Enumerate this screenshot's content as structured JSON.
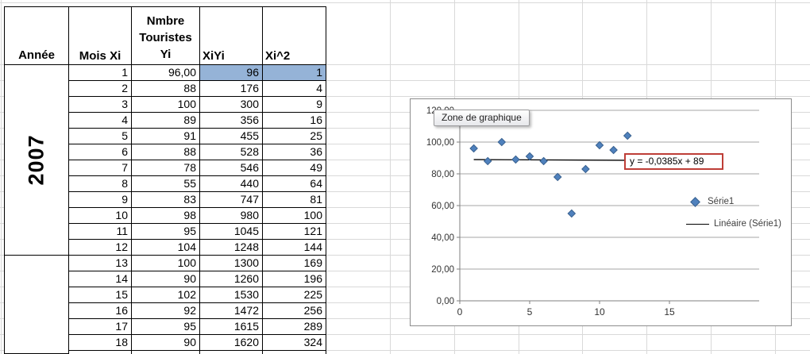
{
  "table": {
    "year_header": "Année",
    "year_value": "2007",
    "col_mois": "Mois Xi",
    "col_touristes_lines": [
      "Nmbre",
      "Touristes",
      "Yi"
    ],
    "col_xiyi": "XiYi",
    "col_xi2": "Xi^2",
    "highlight_color": "#95B3D7",
    "rows": [
      {
        "mois": "1",
        "yi": "96,00",
        "xiyi": "96",
        "xi2": "1",
        "highlight": true
      },
      {
        "mois": "2",
        "yi": "88",
        "xiyi": "176",
        "xi2": "4",
        "highlight": false
      },
      {
        "mois": "3",
        "yi": "100",
        "xiyi": "300",
        "xi2": "9",
        "highlight": false
      },
      {
        "mois": "4",
        "yi": "89",
        "xiyi": "356",
        "xi2": "16",
        "highlight": false
      },
      {
        "mois": "5",
        "yi": "91",
        "xiyi": "455",
        "xi2": "25",
        "highlight": false
      },
      {
        "mois": "6",
        "yi": "88",
        "xiyi": "528",
        "xi2": "36",
        "highlight": false
      },
      {
        "mois": "7",
        "yi": "78",
        "xiyi": "546",
        "xi2": "49",
        "highlight": false
      },
      {
        "mois": "8",
        "yi": "55",
        "xiyi": "440",
        "xi2": "64",
        "highlight": false
      },
      {
        "mois": "9",
        "yi": "83",
        "xiyi": "747",
        "xi2": "81",
        "highlight": false
      },
      {
        "mois": "10",
        "yi": "98",
        "xiyi": "980",
        "xi2": "100",
        "highlight": false
      },
      {
        "mois": "11",
        "yi": "95",
        "xiyi": "1045",
        "xi2": "121",
        "highlight": false
      },
      {
        "mois": "12",
        "yi": "104",
        "xiyi": "1248",
        "xi2": "144",
        "highlight": false
      },
      {
        "mois": "13",
        "yi": "100",
        "xiyi": "1300",
        "xi2": "169",
        "highlight": false
      },
      {
        "mois": "14",
        "yi": "90",
        "xiyi": "1260",
        "xi2": "196",
        "highlight": false
      },
      {
        "mois": "15",
        "yi": "102",
        "xiyi": "1530",
        "xi2": "225",
        "highlight": false
      },
      {
        "mois": "16",
        "yi": "92",
        "xiyi": "1472",
        "xi2": "256",
        "highlight": false
      },
      {
        "mois": "17",
        "yi": "95",
        "xiyi": "1615",
        "xi2": "289",
        "highlight": false
      },
      {
        "mois": "18",
        "yi": "90",
        "xiyi": "1620",
        "xi2": "324",
        "highlight": false
      }
    ]
  },
  "chart": {
    "tooltip_label": "Zone de graphique",
    "trendline_equation": "y = -0,0385x + 89",
    "legend_series_label": "Série1",
    "legend_trend_label": "Linéaire (Série1)",
    "marker_color": "#4F81BD",
    "marker_border_color": "#39618F",
    "trendline_color": "#000000",
    "equation_border_color": "#BE3E37",
    "gridline_color": "#A6A6A6",
    "axis_color": "#7F7F7F",
    "axis_label_color": "#333333"
  },
  "chart_data": {
    "type": "scatter",
    "series": [
      {
        "name": "Série1",
        "x": [
          1,
          2,
          3,
          4,
          5,
          6,
          7,
          8,
          9,
          10,
          11,
          12
        ],
        "y": [
          96,
          88,
          100,
          89,
          91,
          88,
          78,
          55,
          83,
          98,
          95,
          104
        ]
      }
    ],
    "trendline": {
      "name": "Linéaire (Série1)",
      "equation": "y = -0,0385x + 89",
      "slope": -0.0385,
      "intercept": 89,
      "x_start": 1,
      "x_end": 12
    },
    "title": "",
    "xlabel": "",
    "ylabel": "",
    "xlim": [
      0,
      15
    ],
    "ylim": [
      0,
      120
    ],
    "x_tick_labels": [
      "0",
      "5",
      "10",
      "15"
    ],
    "x_tick_values": [
      0,
      5,
      10,
      15
    ],
    "y_tick_labels": [
      "0,00",
      "20,00",
      "40,00",
      "60,00",
      "80,00",
      "100,00",
      "120,00"
    ],
    "y_tick_values": [
      0,
      20,
      40,
      60,
      80,
      100,
      120
    ],
    "grid": true,
    "legend_position": "right"
  }
}
